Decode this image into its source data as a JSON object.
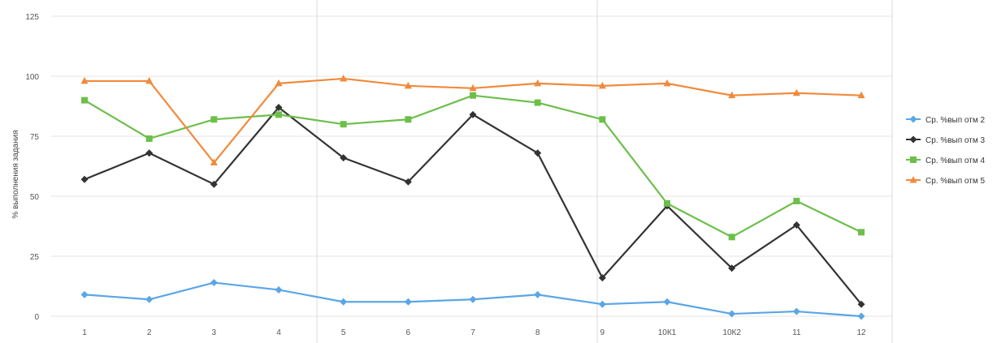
{
  "chart_data": {
    "type": "line",
    "title": "",
    "xlabel": "",
    "ylabel": "% выполнения задания",
    "categories": [
      "1",
      "2",
      "3",
      "4",
      "5",
      "6",
      "7",
      "8",
      "9",
      "10К1",
      "10К2",
      "11",
      "12"
    ],
    "ylim": [
      0,
      125
    ],
    "yticks": [
      0,
      25,
      50,
      75,
      100,
      125
    ],
    "grid": true,
    "legend_position": "right",
    "series": [
      {
        "name": "Ср. %вып отм 2",
        "color": "#5aa6e6",
        "marker": "diamond",
        "values": [
          9,
          7,
          14,
          11,
          6,
          6,
          7,
          9,
          5,
          6,
          1,
          2,
          0
        ]
      },
      {
        "name": "Ср. %вып отм 3",
        "color": "#333333",
        "marker": "diamond",
        "values": [
          57,
          68,
          55,
          87,
          66,
          56,
          84,
          68,
          16,
          46,
          20,
          38,
          5
        ]
      },
      {
        "name": "Ср. %вып отм 4",
        "color": "#6cbf4a",
        "marker": "square",
        "values": [
          90,
          74,
          82,
          84,
          80,
          82,
          92,
          89,
          82,
          47,
          33,
          48,
          35
        ]
      },
      {
        "name": "Ср. %вып отм 5",
        "color": "#f08a3c",
        "marker": "triangle",
        "values": [
          98,
          98,
          64,
          97,
          99,
          96,
          95,
          97,
          96,
          97,
          92,
          93,
          92
        ]
      }
    ]
  }
}
